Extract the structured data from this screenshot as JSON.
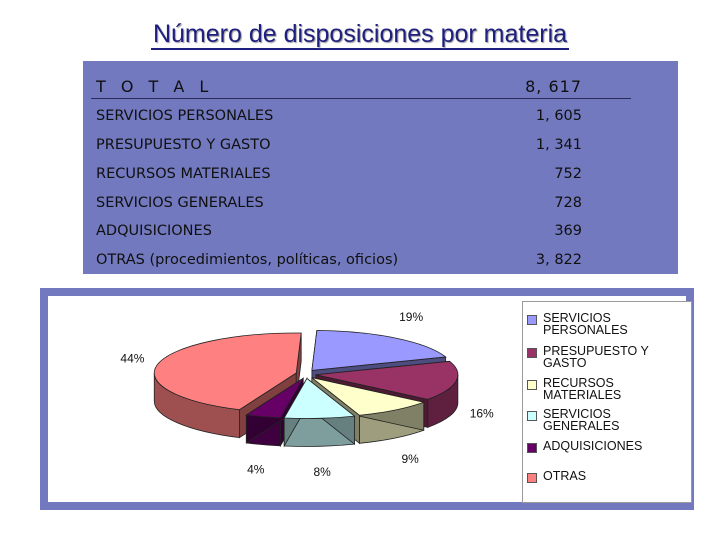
{
  "title": "Número de disposiciones por materia",
  "table": {
    "total": {
      "label": "T O T A L",
      "value": "8, 617"
    },
    "rows": [
      {
        "label": "SERVICIOS PERSONALES",
        "value": "1, 605"
      },
      {
        "label": "PRESUPUESTO Y GASTO",
        "value": "1, 341"
      },
      {
        "label": "RECURSOS MATERIALES",
        "value": "752"
      },
      {
        "label": "SERVICIOS GENERALES",
        "value": "728"
      },
      {
        "label": "ADQUISICIONES",
        "value": "369"
      },
      {
        "label": "OTRAS (procedimientos, políticas, oficios)",
        "value": "3, 822"
      }
    ]
  },
  "chart_data": {
    "type": "pie",
    "style": "3d-exploded",
    "legend_position": "right",
    "title": "",
    "series": [
      {
        "name": "SERVICIOS PERSONALES",
        "value": 19,
        "label": "19%",
        "color": "#9999ff"
      },
      {
        "name": "PRESUPUESTO Y GASTO",
        "value": 16,
        "label": "16%",
        "color": "#993366"
      },
      {
        "name": "RECURSOS MATERIALES",
        "value": 9,
        "label": "9%",
        "color": "#ffffcc"
      },
      {
        "name": "SERVICIOS GENERALES",
        "value": 8,
        "label": "8%",
        "color": "#ccffff"
      },
      {
        "name": "ADQUISICIONES",
        "value": 4,
        "label": "4%",
        "color": "#660066"
      },
      {
        "name": "OTRAS",
        "value": 44,
        "label": "44%",
        "color": "#ff8080"
      }
    ]
  },
  "colors": {
    "panel": "#7279bf",
    "title": "#1f1f80"
  }
}
